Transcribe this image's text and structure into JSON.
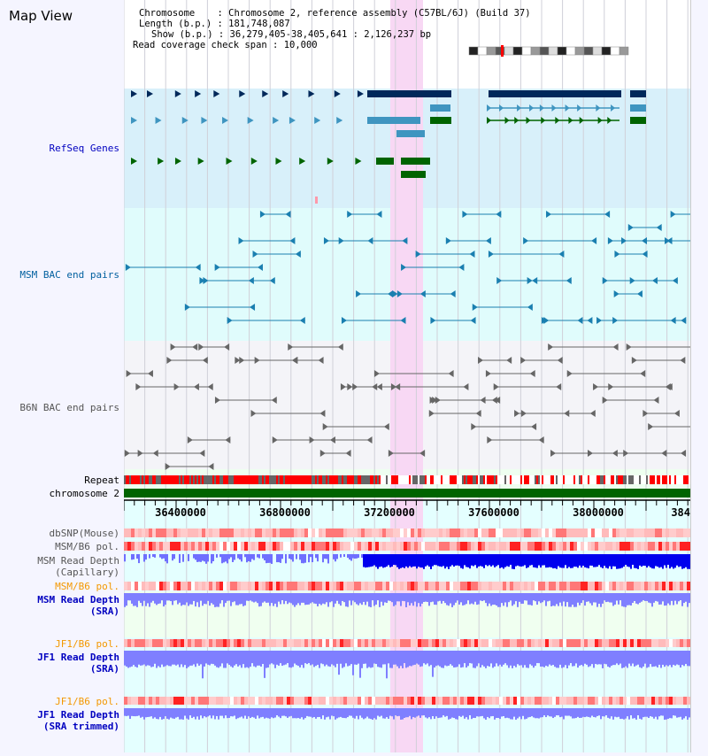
{
  "title": "Map View",
  "header": {
    "chromosome_label": "Chromosome    ",
    "chromosome_value": "Chromosome 2, reference assembly (C57BL/6J) (Build 37)",
    "length_label": "Length (b.p.)",
    "length_value": "181,748,087",
    "show_label": "Show (b.p.)",
    "show_value": "36,279,405-38,405,641 : 2,126,237 bp",
    "coverage_label": "Read coverage check span",
    "coverage_value": "10,000"
  },
  "tracks": {
    "refseq": "RefSeq Genes",
    "msm_bac": "MSM BAC end pairs",
    "b6n_bac": "B6N BAC end pairs",
    "repeat": "Repeat",
    "chromosome": "chromosome 2",
    "dbsnp": "dbSNP(Mouse)",
    "msm_pol1": "MSM/B6 pol.",
    "msm_depth_cap1": "MSM Read Depth",
    "msm_depth_cap2": "(Capillary)",
    "msm_pol2": "MSM/B6 pol.",
    "msm_depth_sra1": "MSM Read Depth",
    "msm_depth_sra2": "(SRA)",
    "jf1_pol1": "JF1/B6 pol.",
    "jf1_depth1": "JF1 Read Depth",
    "jf1_depth2": "(SRA)",
    "jf1_pol2": "JF1/B6 pol.",
    "jf1_trim1": "JF1 Read Depth",
    "jf1_trim2": "(SRA trimmed)"
  },
  "axis": {
    "ticks": [
      "36400000",
      "36800000",
      "37200000",
      "37600000",
      "38000000",
      "384"
    ]
  },
  "colors": {
    "refseq_bg": "#d8f0fa",
    "msm_bg": "#e0fcfc",
    "b6n_bg": "#f4f4f8",
    "highlight": "#f8d8f4",
    "gene_dark": "#00285a",
    "gene_blue": "#3f95c0",
    "gene_green": "#006400",
    "repeat": "#ff0000",
    "depth": "#7f7fff",
    "depth_cap": "#0000ee"
  }
}
